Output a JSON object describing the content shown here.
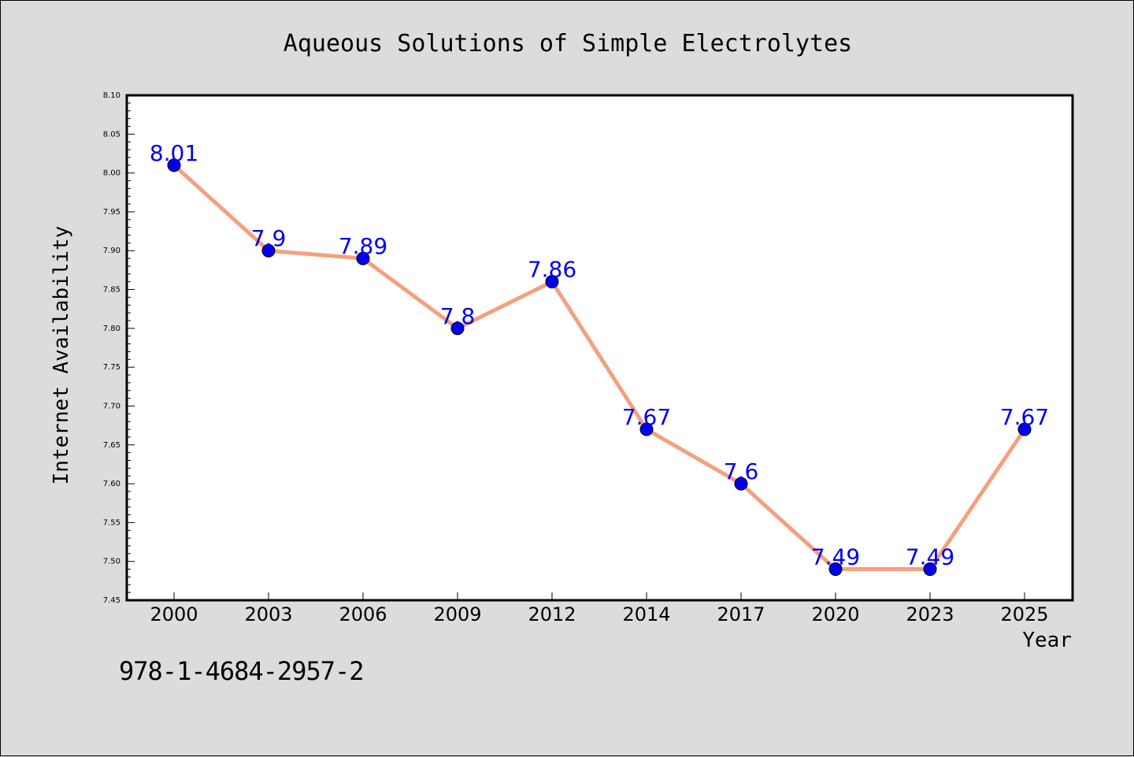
{
  "chart_data": {
    "type": "line",
    "title": "Aqueous Solutions of Simple Electrolytes",
    "xlabel": "Year",
    "ylabel": "Internet Availability",
    "categories": [
      "2000",
      "2003",
      "2006",
      "2009",
      "2012",
      "2014",
      "2017",
      "2020",
      "2023",
      "2025"
    ],
    "series": [
      {
        "values": [
          8.01,
          7.9,
          7.89,
          7.8,
          7.86,
          7.67,
          7.6,
          7.49,
          7.49,
          7.67
        ],
        "data_labels": [
          "8.01",
          "7.9",
          "7.89",
          "7.8",
          "7.86",
          "7.67",
          "7.6",
          "7.49",
          "7.49",
          "7.67"
        ],
        "line_color": "#f4a07f",
        "marker_color": "#0000ee",
        "label_color": "#0000ee"
      }
    ],
    "ylim": [
      7.45,
      8.1
    ],
    "yticks": [
      "7.45",
      "7.50",
      "7.55",
      "7.60",
      "7.65",
      "7.70",
      "7.75",
      "7.80",
      "7.85",
      "7.90",
      "7.95",
      "8.00",
      "8.05",
      "8.10"
    ],
    "grid": false,
    "legend": "none"
  },
  "footer": {
    "isbn": "978-1-4684-2957-2"
  },
  "colors": {
    "background": "#dcdcdc",
    "plot_background": "#ffffff"
  }
}
